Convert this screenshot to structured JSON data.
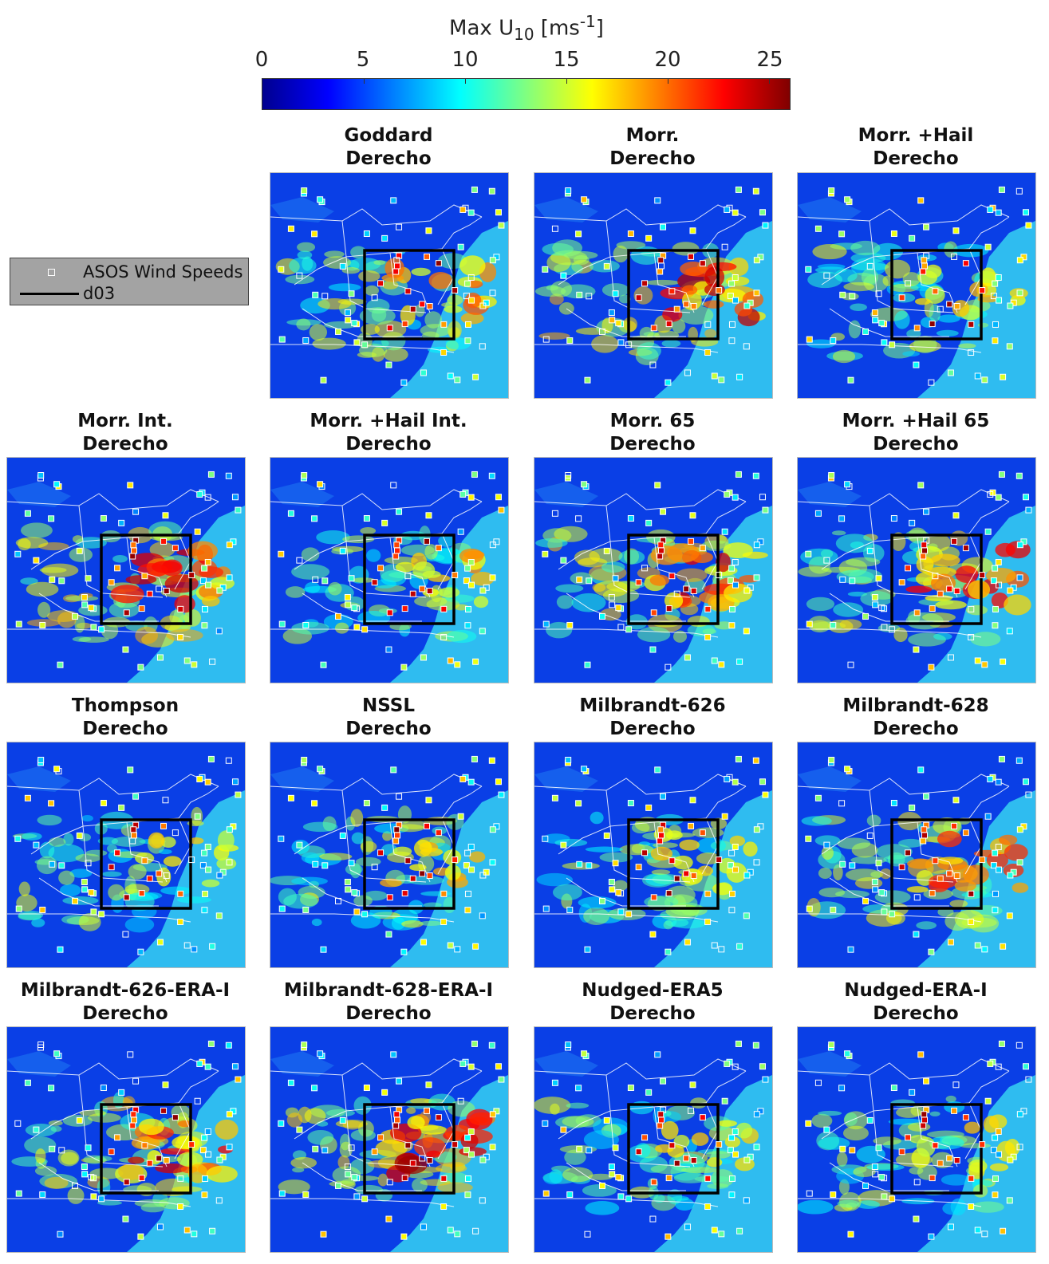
{
  "colorbar": {
    "title_main": "Max U",
    "title_sub": "10",
    "title_unit_open": " [ms",
    "title_sup": "-1",
    "title_unit_close": "]",
    "ticks": [
      "0",
      "5",
      "10",
      "15",
      "20",
      "25"
    ],
    "range": [
      0,
      26
    ],
    "colormap": "jet"
  },
  "legend": {
    "station_label": "ASOS Wind Speeds",
    "domain_label": "d03"
  },
  "colors": {
    "ocean": "#2fbcf0",
    "land": "#0a3fe6",
    "domain_box": "#000000",
    "border": "#ffffff"
  },
  "panels": [
    {
      "title_line1": "Goddard",
      "title_line2": "Derecho",
      "storm": 0.55
    },
    {
      "title_line1": "Morr.",
      "title_line2": "Derecho",
      "storm": 0.9
    },
    {
      "title_line1": "Morr. +Hail",
      "title_line2": "Derecho",
      "storm": 0.35
    },
    {
      "title_line1": "Morr. Int.",
      "title_line2": "Derecho",
      "storm": 0.9
    },
    {
      "title_line1": "Morr. +Hail Int.",
      "title_line2": "Derecho",
      "storm": 0.45
    },
    {
      "title_line1": "Morr. 65",
      "title_line2": "Derecho",
      "storm": 0.85
    },
    {
      "title_line1": "Morr. +Hail 65",
      "title_line2": "Derecho",
      "storm": 0.8
    },
    {
      "title_line1": "Thompson",
      "title_line2": "Derecho",
      "storm": 0.3
    },
    {
      "title_line1": "NSSL",
      "title_line2": "Derecho",
      "storm": 0.4
    },
    {
      "title_line1": "Milbrandt-626",
      "title_line2": "Derecho",
      "storm": 0.35
    },
    {
      "title_line1": "Milbrandt-628",
      "title_line2": "Derecho",
      "storm": 0.75
    },
    {
      "title_line1": "Milbrandt-626-ERA-I",
      "title_line2": "Derecho",
      "storm": 0.85
    },
    {
      "title_line1": "Milbrandt-628-ERA-I",
      "title_line2": "Derecho",
      "storm": 0.95
    },
    {
      "title_line1": "Nudged-ERA5",
      "title_line2": "Derecho",
      "storm": 0.3
    },
    {
      "title_line1": "Nudged-ERA-I",
      "title_line2": "Derecho",
      "storm": 0.3
    }
  ]
}
